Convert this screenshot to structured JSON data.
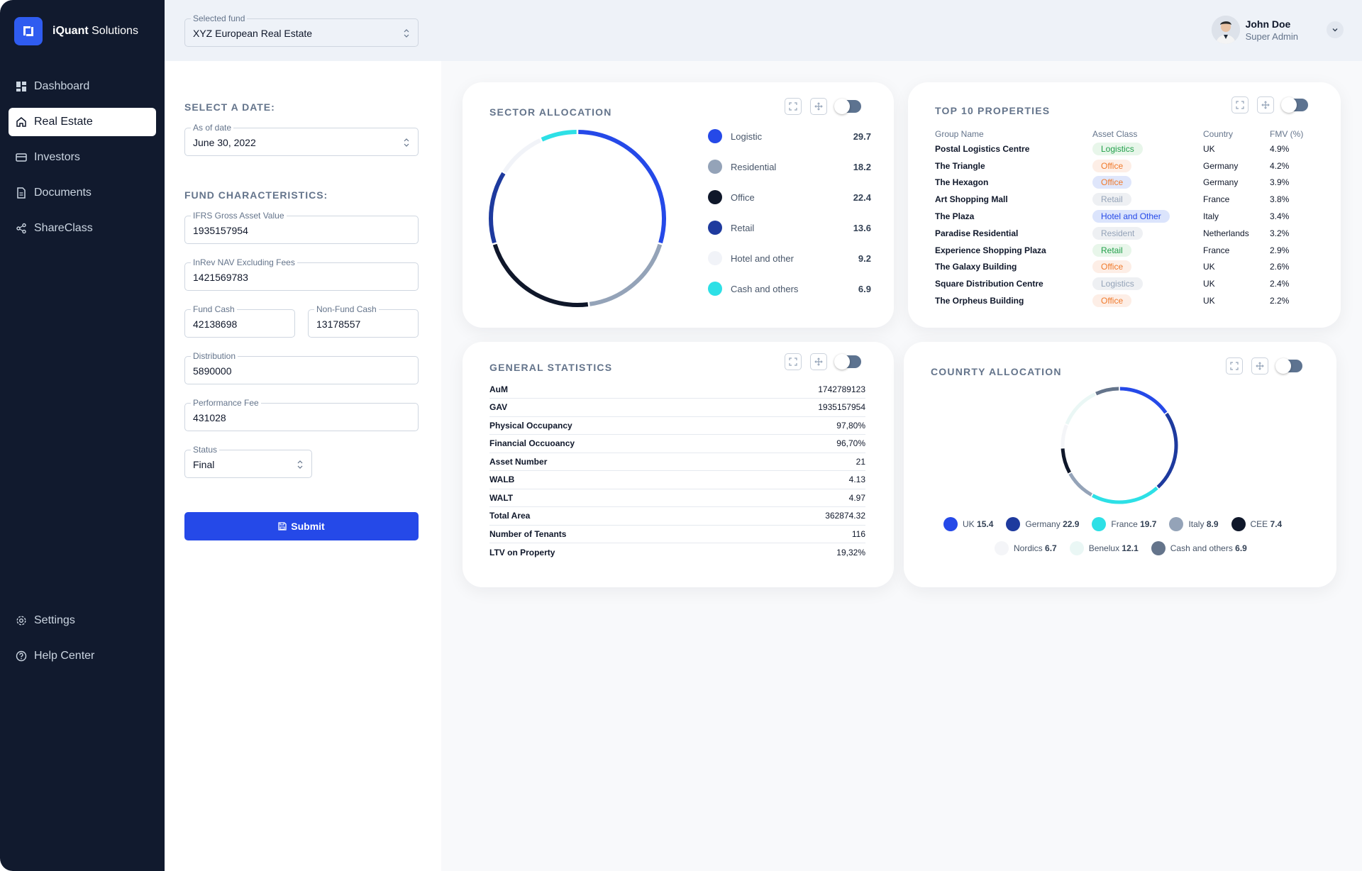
{
  "brand": {
    "name_bold": "iQuant",
    "name_rest": " Solutions"
  },
  "nav": {
    "items": [
      {
        "label": "Dashboard",
        "icon": "dashboard-icon"
      },
      {
        "label": "Real Estate",
        "icon": "home-icon",
        "active": true
      },
      {
        "label": "Investors",
        "icon": "card-icon"
      },
      {
        "label": "Documents",
        "icon": "document-icon"
      },
      {
        "label": "ShareClass",
        "icon": "share-icon"
      }
    ],
    "bottom": [
      {
        "label": "Settings",
        "icon": "gear-icon"
      },
      {
        "label": "Help Center",
        "icon": "help-icon"
      }
    ]
  },
  "header": {
    "fund_label": "Selected fund",
    "fund_value": "XYZ European Real Estate",
    "user_name": "John Doe",
    "user_role": "Super Admin"
  },
  "form": {
    "date_section": "SELECT A DATE:",
    "as_of_label": "As of date",
    "as_of_value": "June 30, 2022",
    "fund_section": "FUND CHARACTERISTICS:",
    "ifrs_label": "IFRS Gross Asset Value",
    "ifrs_value": "1935157954",
    "inrev_label": "InRev NAV Excluding Fees",
    "inrev_value": "1421569783",
    "fund_cash_label": "Fund Cash",
    "fund_cash_value": "42138698",
    "nonfund_cash_label": "Non-Fund Cash",
    "nonfund_cash_value": "13178557",
    "distribution_label": "Distribution",
    "distribution_value": "5890000",
    "perf_fee_label": "Performance Fee",
    "perf_fee_value": "431028",
    "status_label": "Status",
    "status_value": "Final",
    "submit_label": "Submit"
  },
  "sector": {
    "title": "SECTOR ALLOCATION",
    "items": [
      {
        "label": "Logistic",
        "value": "29.7",
        "color": "#2549e8"
      },
      {
        "label": "Residential",
        "value": "18.2",
        "color": "#94a3b8"
      },
      {
        "label": "Office",
        "value": "22.4",
        "color": "#0f172a"
      },
      {
        "label": "Retail",
        "value": "13.6",
        "color": "#1e3a9e"
      },
      {
        "label": "Hotel and other",
        "value": "9.2",
        "color": "#f1f3f8"
      },
      {
        "label": "Cash and others",
        "value": "6.9",
        "color": "#2de0e6"
      }
    ]
  },
  "top10": {
    "title": "TOP 10 PROPERTIES",
    "columns": [
      "Group Name",
      "Asset Class",
      "Country",
      "FMV (%)"
    ],
    "rows": [
      {
        "name": "Postal Logistics Centre",
        "asset": "Logistics",
        "country": "UK",
        "fmv": "4.9%",
        "badge_bg": "#e8f6ea",
        "badge_fg": "#22a04b"
      },
      {
        "name": "The Triangle",
        "asset": "Office",
        "country": "Germany",
        "fmv": "4.2%",
        "badge_bg": "#fdeee6",
        "badge_fg": "#f07a2c"
      },
      {
        "name": "The Hexagon",
        "asset": "Office",
        "country": "Germany",
        "fmv": "3.9%",
        "badge_bg": "#dfe6fb",
        "badge_fg": "#f07a2c"
      },
      {
        "name": "Art Shopping Mall",
        "asset": "Retail",
        "country": "France",
        "fmv": "3.8%",
        "badge_bg": "#eef0f3",
        "badge_fg": "#94a3b8"
      },
      {
        "name": "The Plaza",
        "asset": "Hotel and Other",
        "country": "Italy",
        "fmv": "3.4%",
        "badge_bg": "#dbe4fc",
        "badge_fg": "#2549e8"
      },
      {
        "name": "Paradise Residential",
        "asset": "Resident",
        "country": "Netherlands",
        "fmv": "3.2%",
        "badge_bg": "#eef0f3",
        "badge_fg": "#94a3b8"
      },
      {
        "name": "Experience Shopping Plaza",
        "asset": "Retail",
        "country": "France",
        "fmv": "2.9%",
        "badge_bg": "#e8f6ea",
        "badge_fg": "#22a04b"
      },
      {
        "name": "The Galaxy Building",
        "asset": "Office",
        "country": "UK",
        "fmv": "2.6%",
        "badge_bg": "#fdeee6",
        "badge_fg": "#f07a2c"
      },
      {
        "name": "Square Distribution Centre",
        "asset": "Logistics",
        "country": "UK",
        "fmv": "2.4%",
        "badge_bg": "#eef0f3",
        "badge_fg": "#94a3b8"
      },
      {
        "name": "The Orpheus Building",
        "asset": "Office",
        "country": "UK",
        "fmv": "2.2%",
        "badge_bg": "#fdeee6",
        "badge_fg": "#f07a2c"
      }
    ]
  },
  "stats": {
    "title": "GENERAL STATISTICS",
    "rows": [
      {
        "k": "AuM",
        "v": "1742789123"
      },
      {
        "k": "GAV",
        "v": "1935157954"
      },
      {
        "k": "Physical Occupancy",
        "v": "97,80%"
      },
      {
        "k": "Financial Occuoancy",
        "v": "96,70%"
      },
      {
        "k": "Asset Number",
        "v": "21"
      },
      {
        "k": "WALB",
        "v": "4.13"
      },
      {
        "k": "WALT",
        "v": "4.97"
      },
      {
        "k": "Total Area",
        "v": "362874.32"
      },
      {
        "k": "Number of Tenants",
        "v": "116"
      },
      {
        "k": "LTV on Property",
        "v": "19,32%"
      }
    ]
  },
  "country": {
    "title": "COUNRTY ALLOCATION",
    "items": [
      {
        "label": "UK",
        "value": "15.4",
        "color": "#2549e8"
      },
      {
        "label": "Germany",
        "value": "22.9",
        "color": "#1e3a9e"
      },
      {
        "label": "France",
        "value": "19.7",
        "color": "#2de0e6"
      },
      {
        "label": "Italy",
        "value": "8.9",
        "color": "#94a3b8"
      },
      {
        "label": "CEE",
        "value": "7.4",
        "color": "#0f172a"
      },
      {
        "label": "Nordics",
        "value": "6.7",
        "color": "#f4f5f8"
      },
      {
        "label": "Benelux",
        "value": "12.1",
        "color": "#eaf7f5"
      },
      {
        "label": "Cash and others",
        "value": "6.9",
        "color": "#64748b"
      }
    ]
  },
  "chart_data": [
    {
      "type": "pie",
      "title": "SECTOR ALLOCATION",
      "categories": [
        "Logistic",
        "Residential",
        "Office",
        "Retail",
        "Hotel and other",
        "Cash and others"
      ],
      "values": [
        29.7,
        18.2,
        22.4,
        13.6,
        9.2,
        6.9
      ]
    },
    {
      "type": "pie",
      "title": "COUNRTY ALLOCATION",
      "categories": [
        "UK",
        "Germany",
        "France",
        "Italy",
        "CEE",
        "Nordics",
        "Benelux",
        "Cash and others"
      ],
      "values": [
        15.4,
        22.9,
        19.7,
        8.9,
        7.4,
        6.7,
        12.1,
        6.9
      ]
    }
  ]
}
